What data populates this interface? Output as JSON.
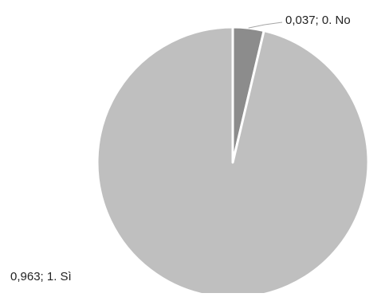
{
  "chart_data": {
    "type": "pie",
    "slices": [
      {
        "category": "0. No",
        "value": 0.037,
        "label": "0,037; 0. No",
        "color": "#8c8c8c"
      },
      {
        "category": "1. Sì",
        "value": 0.963,
        "label": "0,963; 1. Sì",
        "color": "#bfbfbf"
      }
    ],
    "legend": "none",
    "start_angle_deg": 0,
    "direction": "clockwise"
  }
}
